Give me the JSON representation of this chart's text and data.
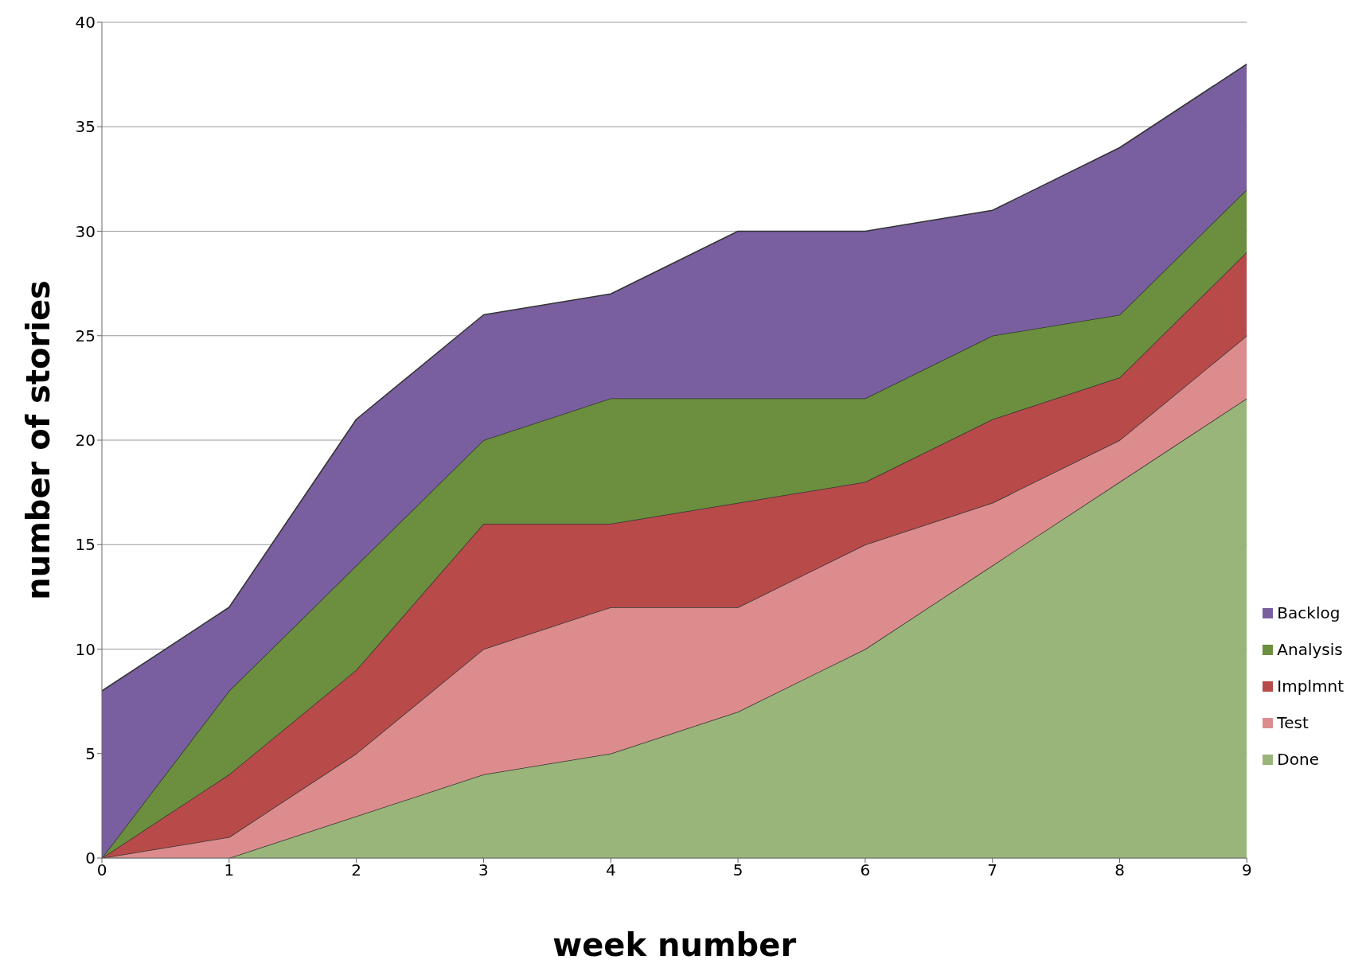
{
  "chart_data": {
    "type": "area",
    "stacked": true,
    "xlabel": "week number",
    "ylabel": "number of stories",
    "x": [
      0,
      1,
      2,
      3,
      4,
      5,
      6,
      7,
      8,
      9
    ],
    "xlim": [
      0,
      9
    ],
    "xticks": [
      0,
      1,
      2,
      3,
      4,
      5,
      6,
      7,
      8,
      9
    ],
    "ylim": [
      0,
      40
    ],
    "yticks": [
      0,
      5,
      10,
      15,
      20,
      25,
      30,
      35,
      40
    ],
    "grid": "y",
    "legend": "right",
    "series": [
      {
        "name": "Done",
        "color": "#9ab57a",
        "values": [
          0,
          0,
          2,
          4,
          5,
          7,
          10,
          14,
          18,
          22
        ]
      },
      {
        "name": "Test",
        "color": "#dc8c8c",
        "values": [
          0,
          1,
          3,
          6,
          7,
          5,
          5,
          3,
          2,
          3
        ]
      },
      {
        "name": "Implmnt",
        "color": "#b84a4a",
        "values": [
          0,
          3,
          4,
          6,
          4,
          5,
          3,
          4,
          3,
          4
        ]
      },
      {
        "name": "Analysis",
        "color": "#6b8f3e",
        "values": [
          0,
          4,
          5,
          4,
          6,
          5,
          4,
          4,
          3,
          3
        ]
      },
      {
        "name": "Backlog",
        "color": "#7a5fa0",
        "values": [
          8,
          4,
          7,
          6,
          5,
          8,
          8,
          6,
          8,
          6
        ]
      }
    ]
  }
}
